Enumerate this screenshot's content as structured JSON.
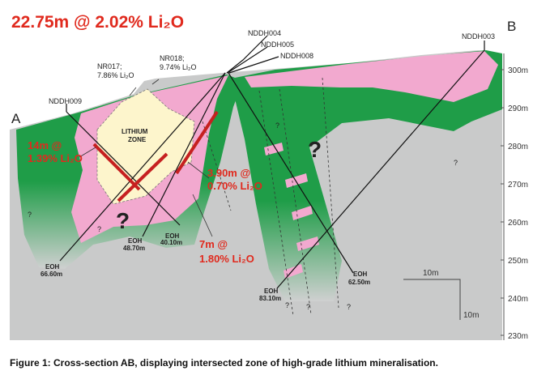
{
  "headline": "22.75m @ 2.02% Li₂O",
  "section_ends": [
    "A",
    "B"
  ],
  "lithium_zone": [
    "LITHIUM",
    "ZONE"
  ],
  "samples": [
    {
      "name": "NR017;",
      "grade": "7.86% Li₂O"
    },
    {
      "name": "NR018;",
      "grade": "9.74% Li₂O"
    }
  ],
  "drillholes": [
    "NDDH009",
    "NDDH004",
    "NDDH005",
    "NDDH008",
    "NDDH003"
  ],
  "intercepts": [
    {
      "length": "14m @",
      "grade": "1.39% Li₂O"
    },
    {
      "length": "3.90m @",
      "grade": "0.70% Li₂O"
    },
    {
      "length": "7m @",
      "grade": "1.80% Li₂O"
    }
  ],
  "eoh": [
    {
      "label": "EOH",
      "depth": "66.60m"
    },
    {
      "label": "EOH",
      "depth": "48.70m"
    },
    {
      "label": "EOH",
      "depth": "40.10m"
    },
    {
      "label": "EOH",
      "depth": "62.50m"
    },
    {
      "label": "EOH",
      "depth": "83.10m"
    }
  ],
  "elevations": [
    "300m",
    "290m",
    "280m",
    "270m",
    "260m",
    "250m",
    "240m",
    "230m"
  ],
  "unknowns": [
    "?",
    "?",
    "?",
    "?",
    "?",
    "?",
    "?",
    "?",
    "?"
  ],
  "scale": [
    "10m",
    "10m"
  ],
  "caption": "Figure 1: Cross-section AB, displaying intersected zone of high-grade lithium mineralisation."
}
